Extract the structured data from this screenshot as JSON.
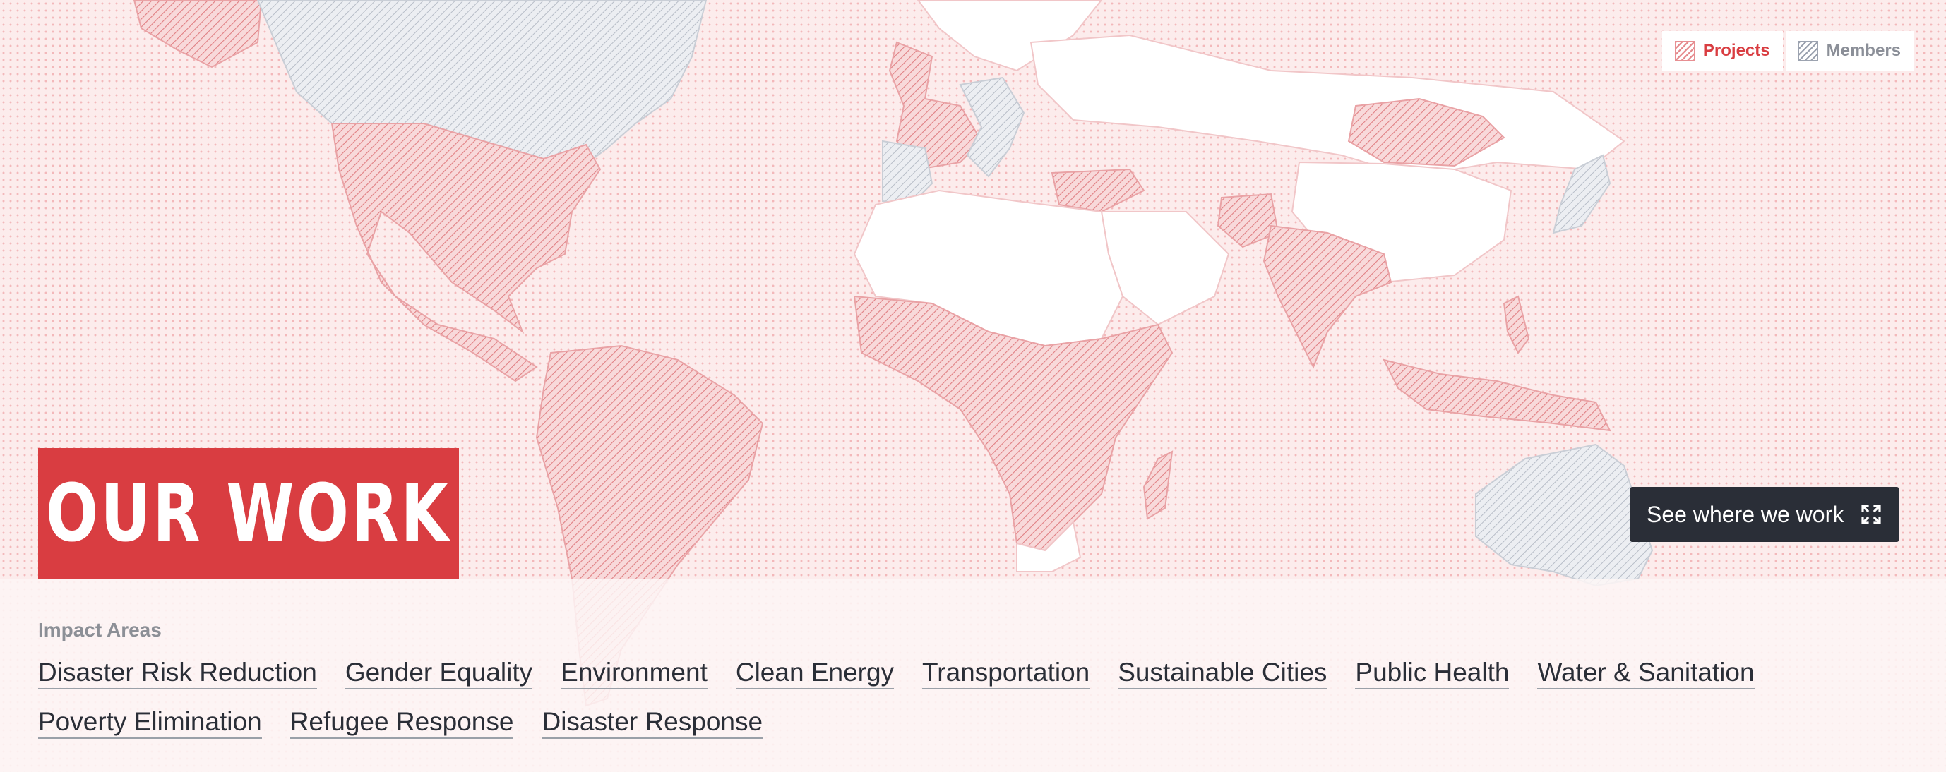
{
  "legend": {
    "projects_label": "Projects",
    "members_label": "Members",
    "projects_icon": "hatched-swatch-red-icon",
    "members_icon": "hatched-swatch-gray-icon"
  },
  "hero": {
    "title": "OUR WORK"
  },
  "map_button": {
    "label": "See where we work",
    "icon": "expand-icon"
  },
  "impact": {
    "heading": "Impact Areas",
    "areas": [
      "Disaster Risk Reduction",
      "Gender Equality",
      "Environment",
      "Clean Energy",
      "Transportation",
      "Sustainable Cities",
      "Public Health",
      "Water & Sanitation",
      "Poverty Elimination",
      "Refugee Response",
      "Disaster Response"
    ]
  },
  "colors": {
    "brand_red": "#d93d41",
    "dark": "#2a2e37",
    "muted_gray": "#8c8f96"
  }
}
